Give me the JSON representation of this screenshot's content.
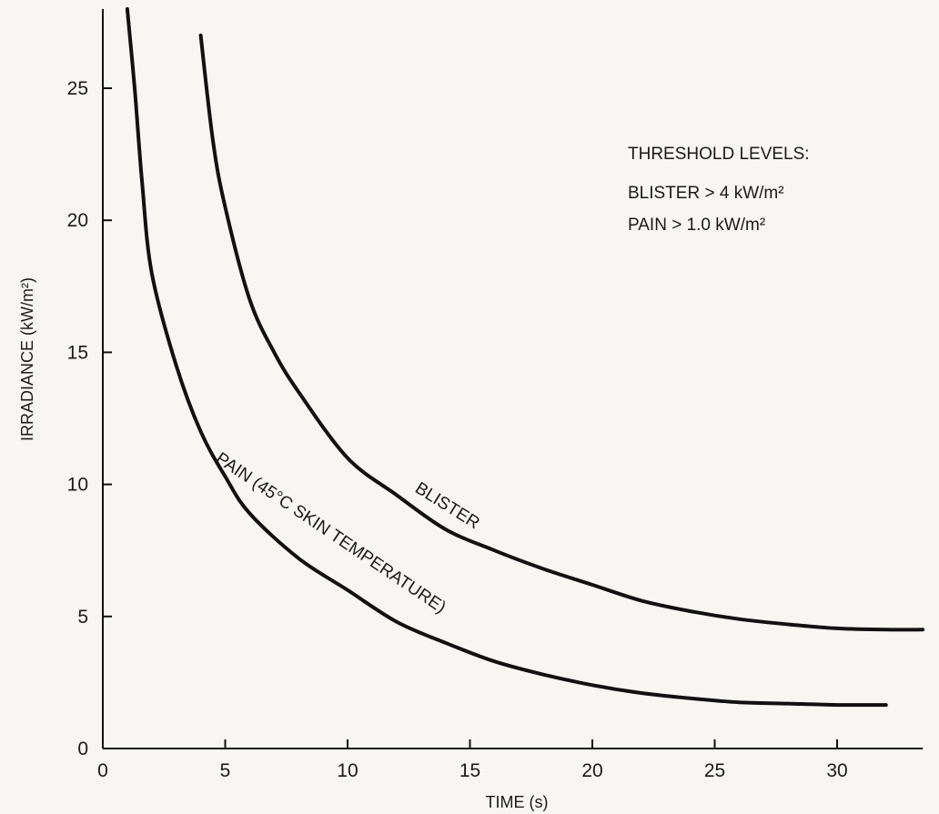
{
  "chart_data": {
    "type": "line",
    "xlabel": "TIME (s)",
    "ylabel": "IRRADIANCE (kW/m²)",
    "xlim": [
      0,
      33.5
    ],
    "ylim": [
      0,
      28
    ],
    "x_ticks": [
      0,
      5,
      10,
      15,
      20,
      25,
      30
    ],
    "y_ticks": [
      0,
      5,
      10,
      15,
      20,
      25
    ],
    "grid": false,
    "threshold_title": "THRESHOLD LEVELS:",
    "threshold_lines": [
      "BLISTER > 4 kW/m²",
      "PAIN > 1.0 kW/m²"
    ],
    "series": [
      {
        "name": "BLISTER",
        "color": "#111111",
        "points": [
          [
            4,
            27.0
          ],
          [
            4.5,
            23.0
          ],
          [
            5,
            20.5
          ],
          [
            6,
            17.0
          ],
          [
            7,
            15.0
          ],
          [
            8,
            13.5
          ],
          [
            10,
            11.0
          ],
          [
            12,
            9.6
          ],
          [
            14,
            8.3
          ],
          [
            16,
            7.5
          ],
          [
            18,
            6.8
          ],
          [
            20,
            6.2
          ],
          [
            22,
            5.6
          ],
          [
            24,
            5.2
          ],
          [
            26,
            4.9
          ],
          [
            28,
            4.7
          ],
          [
            30,
            4.55
          ],
          [
            32,
            4.5
          ],
          [
            33.5,
            4.5
          ]
        ]
      },
      {
        "name": "PAIN (45°C SKIN TEMPERATURE)",
        "color": "#111111",
        "points": [
          [
            1,
            28.0
          ],
          [
            1.3,
            25.0
          ],
          [
            1.6,
            21.5
          ],
          [
            2,
            18.0
          ],
          [
            3,
            14.5
          ],
          [
            4,
            12.0
          ],
          [
            5,
            10.3
          ],
          [
            6,
            8.9
          ],
          [
            8,
            7.2
          ],
          [
            10,
            6.0
          ],
          [
            12,
            4.8
          ],
          [
            14,
            4.0
          ],
          [
            16,
            3.3
          ],
          [
            18,
            2.8
          ],
          [
            20,
            2.4
          ],
          [
            22,
            2.1
          ],
          [
            24,
            1.9
          ],
          [
            26,
            1.75
          ],
          [
            28,
            1.7
          ],
          [
            30,
            1.65
          ],
          [
            32,
            1.65
          ]
        ]
      }
    ]
  }
}
